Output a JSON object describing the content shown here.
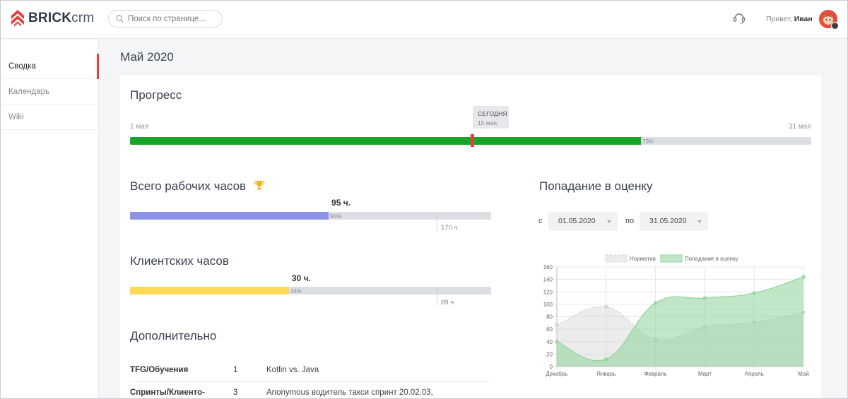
{
  "app": {
    "logo_bold": "BRICK",
    "logo_light": "crm"
  },
  "header": {
    "search_placeholder": "Поиск по странице...",
    "greeting_prefix": "Привет,",
    "user_name": "Иван"
  },
  "sidebar": {
    "items": [
      {
        "label": "Сводка",
        "active": true
      },
      {
        "label": "Календарь",
        "active": false
      },
      {
        "label": "Wiki",
        "active": false
      }
    ]
  },
  "page": {
    "title": "Май 2020"
  },
  "progress": {
    "title": "Прогресс",
    "start_label": "1 мая",
    "end_label": "31 мая",
    "percent_label": "75%",
    "fraction": 0.75,
    "today_fraction": 0.5,
    "tooltip_title": "СЕГОДНЯ",
    "tooltip_date": "15 мая"
  },
  "work_hours": {
    "title": "Всего рабочих часов",
    "value_label": "95 ч.",
    "percent_label": "55%",
    "fraction": 0.55,
    "target_label": "170 ч.",
    "color": "#8b92e8"
  },
  "client_hours": {
    "title": "Клиентских часов",
    "value_label": "30 ч.",
    "percent_label": "44%",
    "fraction": 0.44,
    "target_label": "69 ч.",
    "color": "#ffd95a"
  },
  "extra": {
    "title": "Дополнительно",
    "rows": [
      {
        "name": "TFG/Обучения",
        "count": "1",
        "desc": "Kotlin vs. Java"
      },
      {
        "name": "Спринты/Клиенто-",
        "count": "3",
        "desc": "Anonymous водитель такси спринт 20.02.03,"
      }
    ]
  },
  "estimate": {
    "title": "Попадание в оценку",
    "from_label": "с",
    "from_date": "01.05.2020",
    "to_label": "по",
    "to_date": "31.05.2020"
  },
  "chart_data": {
    "type": "area",
    "categories": [
      "Декабрь",
      "Январь",
      "Февраль",
      "Март",
      "Апрель",
      "Май"
    ],
    "series": [
      {
        "name": "Норматив",
        "values": [
          67,
          96,
          44,
          64,
          71,
          87
        ],
        "color": "#cfcfcf"
      },
      {
        "name": "Попадание в оценку",
        "values": [
          40,
          12,
          102,
          110,
          118,
          144
        ],
        "color": "#8fd49b"
      }
    ],
    "yticks": [
      "0",
      "20",
      "40",
      "60",
      "80",
      "100",
      "120",
      "140",
      "160"
    ],
    "ylim": [
      0,
      160
    ],
    "legend": "top",
    "grid": true
  }
}
